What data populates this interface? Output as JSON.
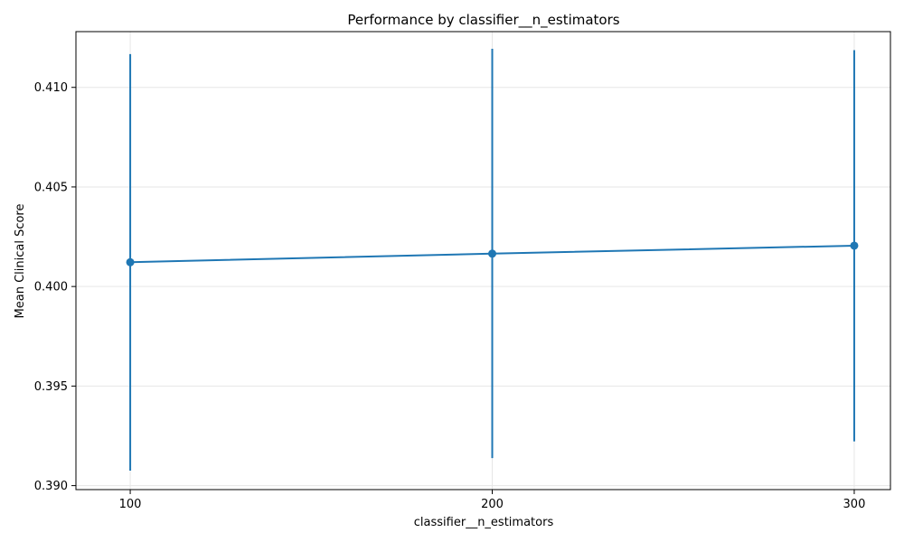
{
  "chart_data": {
    "type": "line",
    "title": "Performance by classifier__n_estimators",
    "xlabel": "classifier__n_estimators",
    "ylabel": "Mean Clinical Score",
    "x": [
      100,
      200,
      300
    ],
    "series": [
      {
        "values": [
          0.40122,
          0.40165,
          0.40205
        ],
        "error_low": [
          0.39075,
          0.39138,
          0.39222
        ],
        "error_high": [
          0.41167,
          0.41194,
          0.41187
        ]
      }
    ],
    "xlim": [
      85,
      310
    ],
    "ylim": [
      0.3898,
      0.4128
    ],
    "xticks": [
      100,
      200,
      300
    ],
    "yticks": [
      0.39,
      0.395,
      0.4,
      0.405,
      0.41
    ],
    "ytick_labels": [
      "0.390",
      "0.395",
      "0.400",
      "0.405",
      "0.410"
    ],
    "grid": true,
    "markers": true,
    "colors": {
      "line": "#1f77b4",
      "grid": "#e6e6e6",
      "axis": "#000000"
    }
  }
}
